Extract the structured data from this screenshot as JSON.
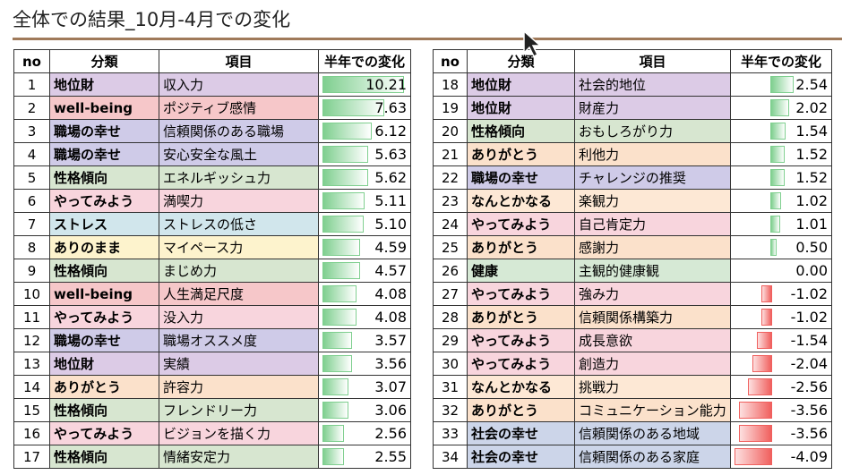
{
  "title": "全体での結果_10月-4月での変化",
  "category_colors": {
    "地位財": "#dccbe6",
    "well-being": "#f6c7c9",
    "職場の幸せ": "#cfcbe8",
    "性格傾向": "#d7e6d0",
    "やってみよう": "#f8d5dd",
    "ストレス": "#d1e6ec",
    "ありのまま": "#fdf3cd",
    "ありがとう": "#fbe1cb",
    "なんとかなる": "#fde8d5",
    "健康": "#d6e9d5",
    "社会の幸せ": "#ccd5e9"
  },
  "bar_colors": {
    "positive": "#7fcf8f",
    "negative": "#f0605e"
  },
  "tables": [
    {
      "header": [
        "no",
        "分類",
        "項目",
        "半年での変化"
      ],
      "rows": [
        [
          1,
          "地位財",
          "収入力",
          "10.21"
        ],
        [
          2,
          "well-being",
          "ポジティブ感情",
          "7.63"
        ],
        [
          3,
          "職場の幸せ",
          "信頼関係のある職場",
          "6.12"
        ],
        [
          4,
          "職場の幸せ",
          "安心安全な風土",
          "5.63"
        ],
        [
          5,
          "性格傾向",
          "エネルギッシュ力",
          "5.62"
        ],
        [
          6,
          "やってみよう",
          "満喫力",
          "5.11"
        ],
        [
          7,
          "ストレス",
          "ストレスの低さ",
          "5.10"
        ],
        [
          8,
          "ありのまま",
          "マイペース力",
          "4.59"
        ],
        [
          9,
          "性格傾向",
          "まじめ力",
          "4.57"
        ],
        [
          10,
          "well-being",
          "人生満足尺度",
          "4.08"
        ],
        [
          11,
          "やってみよう",
          "没入力",
          "4.08"
        ],
        [
          12,
          "職場の幸せ",
          "職場オススメ度",
          "3.57"
        ],
        [
          13,
          "地位財",
          "実績",
          "3.56"
        ],
        [
          14,
          "ありがとう",
          "許容力",
          "3.07"
        ],
        [
          15,
          "性格傾向",
          "フレンドリー力",
          "3.06"
        ],
        [
          16,
          "やってみよう",
          "ビジョンを描く力",
          "2.56"
        ],
        [
          17,
          "性格傾向",
          "情緒安定力",
          "2.55"
        ]
      ]
    },
    {
      "header": [
        "no",
        "分類",
        "項目",
        "半年での変化"
      ],
      "rows": [
        [
          18,
          "地位財",
          "社会的地位",
          "2.54"
        ],
        [
          19,
          "地位財",
          "財産力",
          "2.02"
        ],
        [
          20,
          "性格傾向",
          "おもしろがり力",
          "1.54"
        ],
        [
          21,
          "ありがとう",
          "利他力",
          "1.52"
        ],
        [
          22,
          "職場の幸せ",
          "チャレンジの推奨",
          "1.52"
        ],
        [
          23,
          "なんとかなる",
          "楽観力",
          "1.02"
        ],
        [
          24,
          "やってみよう",
          "自己肯定力",
          "1.01"
        ],
        [
          25,
          "ありがとう",
          "感謝力",
          "0.50"
        ],
        [
          26,
          "健康",
          "主観的健康観",
          "0.00"
        ],
        [
          27,
          "やってみよう",
          "強み力",
          "-1.02"
        ],
        [
          28,
          "ありがとう",
          "信頼関係構築力",
          "-1.02"
        ],
        [
          29,
          "やってみよう",
          "成長意欲",
          "-1.54"
        ],
        [
          30,
          "やってみよう",
          "創造力",
          "-2.04"
        ],
        [
          31,
          "なんとかなる",
          "挑戦力",
          "-2.56"
        ],
        [
          32,
          "ありがとう",
          "コミュニケーション能力",
          "-3.56"
        ],
        [
          33,
          "社会の幸せ",
          "信頼関係のある地域",
          "-3.56"
        ],
        [
          34,
          "社会の幸せ",
          "信頼関係のある家庭",
          "-4.09"
        ]
      ]
    }
  ]
}
